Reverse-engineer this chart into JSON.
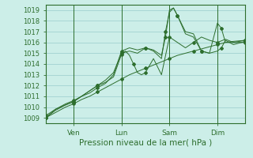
{
  "title": "",
  "xlabel": "Pression niveau de la mer( hPa )",
  "bg_color": "#cceee8",
  "grid_color": "#99cccc",
  "line_color": "#2d6e2d",
  "ylim": [
    1008.5,
    1019.5
  ],
  "xlim": [
    0,
    100
  ],
  "xtick_positions": [
    14,
    38,
    62,
    86
  ],
  "xtick_labels": [
    "Ven",
    "Lun",
    "Sam",
    "Dim"
  ],
  "ytick_positions": [
    1009,
    1010,
    1011,
    1012,
    1013,
    1014,
    1015,
    1016,
    1017,
    1018,
    1019
  ],
  "vline_positions": [
    14,
    38,
    62,
    86
  ],
  "series": [
    {
      "x": [
        0,
        5,
        10,
        14,
        18,
        22,
        26,
        30,
        34,
        38,
        42,
        46,
        50,
        54,
        58,
        62,
        66,
        70,
        74,
        78,
        82,
        86,
        90,
        94,
        100
      ],
      "y": [
        1009.0,
        1009.5,
        1010.0,
        1010.3,
        1010.7,
        1011.0,
        1011.4,
        1011.8,
        1012.2,
        1012.6,
        1013.0,
        1013.3,
        1013.6,
        1013.9,
        1014.2,
        1014.5,
        1014.8,
        1015.0,
        1015.2,
        1015.4,
        1015.6,
        1015.8,
        1016.0,
        1016.1,
        1016.2
      ]
    },
    {
      "x": [
        0,
        5,
        10,
        14,
        18,
        22,
        26,
        30,
        34,
        38,
        40,
        42,
        44,
        46,
        48,
        50,
        54,
        58,
        62,
        66,
        70,
        74,
        78,
        82,
        86,
        90,
        94,
        100
      ],
      "y": [
        1009.0,
        1009.8,
        1010.2,
        1010.5,
        1011.0,
        1011.5,
        1012.0,
        1012.3,
        1012.8,
        1014.9,
        1015.2,
        1014.8,
        1014.0,
        1013.2,
        1013.0,
        1013.2,
        1014.5,
        1013.0,
        1016.5,
        1016.0,
        1015.5,
        1016.0,
        1016.5,
        1016.2,
        1016.0,
        1016.3,
        1016.0,
        1016.2
      ]
    },
    {
      "x": [
        0,
        5,
        10,
        14,
        18,
        22,
        26,
        30,
        34,
        38,
        42,
        46,
        50,
        54,
        58,
        60,
        62,
        64,
        66,
        70,
        74,
        78,
        82,
        86,
        88,
        90,
        94,
        100
      ],
      "y": [
        1009.2,
        1009.8,
        1010.3,
        1010.6,
        1011.0,
        1011.3,
        1011.8,
        1012.2,
        1013.0,
        1015.2,
        1015.5,
        1015.3,
        1015.5,
        1015.3,
        1014.8,
        1016.5,
        1019.0,
        1019.2,
        1018.5,
        1016.8,
        1016.5,
        1015.2,
        1015.0,
        1017.8,
        1017.3,
        1016.0,
        1016.0,
        1016.0
      ]
    },
    {
      "x": [
        0,
        5,
        10,
        14,
        18,
        22,
        26,
        30,
        34,
        38,
        42,
        46,
        50,
        54,
        58,
        60,
        62,
        64,
        66,
        70,
        74,
        78,
        82,
        86,
        88,
        90,
        94,
        100
      ],
      "y": [
        1009.0,
        1009.7,
        1010.2,
        1010.5,
        1011.0,
        1011.5,
        1012.0,
        1012.5,
        1013.2,
        1015.0,
        1015.2,
        1015.0,
        1015.5,
        1015.2,
        1014.5,
        1017.0,
        1018.8,
        1019.2,
        1018.5,
        1017.0,
        1016.8,
        1015.2,
        1015.0,
        1015.2,
        1015.5,
        1016.2,
        1015.8,
        1016.1
      ]
    }
  ]
}
